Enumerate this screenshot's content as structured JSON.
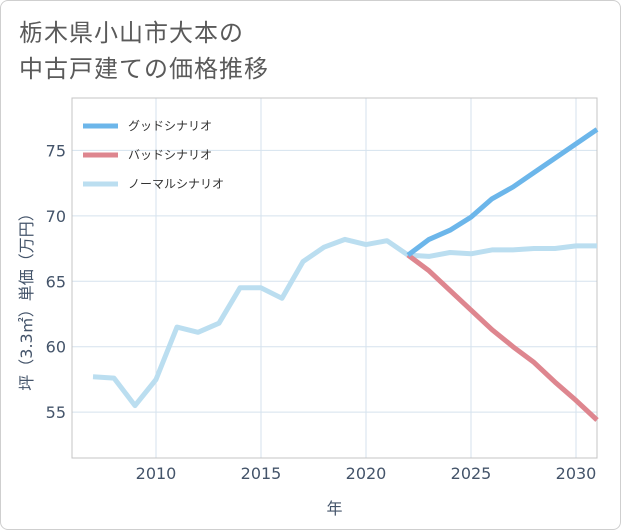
{
  "title_lines": [
    "栃木県小山市大本の",
    "中古戸建ての価格推移"
  ],
  "colors": {
    "good": "#6cb6ea",
    "bad": "#de868f",
    "normal": "#bbdef0",
    "grid": "#d5e2ee",
    "axis_text": "#44546a",
    "frame": "#c4c4c4"
  },
  "chart_data": {
    "type": "line",
    "title": "栃木県小山市大本の中古戸建ての価格推移",
    "xlabel": "年",
    "ylabel": "坪（3.3㎡）単価（万円）",
    "xlim": [
      2006,
      2031
    ],
    "ylim": [
      51.5,
      79
    ],
    "x_ticks": [
      2010,
      2015,
      2020,
      2025,
      2030
    ],
    "y_ticks": [
      55,
      60,
      65,
      70,
      75
    ],
    "grid": true,
    "legend_position": "top-left",
    "series": [
      {
        "key": "good",
        "name": "グッドシナリオ",
        "x": [
          2022,
          2023,
          2024,
          2025,
          2026,
          2027,
          2028,
          2029,
          2030,
          2031
        ],
        "values": [
          67.0,
          68.2,
          68.9,
          69.9,
          71.3,
          72.2,
          73.3,
          74.4,
          75.5,
          76.6
        ]
      },
      {
        "key": "bad",
        "name": "バッドシナリオ",
        "x": [
          2022,
          2023,
          2024,
          2025,
          2026,
          2027,
          2028,
          2029,
          2030,
          2031
        ],
        "values": [
          67.0,
          65.8,
          64.3,
          62.8,
          61.3,
          60.0,
          58.8,
          57.3,
          55.9,
          54.4
        ]
      },
      {
        "key": "normal",
        "name": "ノーマルシナリオ",
        "x": [
          2007,
          2008,
          2009,
          2010,
          2011,
          2012,
          2013,
          2014,
          2015,
          2016,
          2017,
          2018,
          2019,
          2020,
          2021,
          2022,
          2023,
          2024,
          2025,
          2026,
          2027,
          2028,
          2029,
          2030,
          2031
        ],
        "values": [
          57.7,
          57.6,
          55.5,
          57.5,
          61.5,
          61.1,
          61.8,
          64.5,
          64.5,
          63.7,
          66.5,
          67.6,
          68.2,
          67.8,
          68.1,
          67.0,
          66.9,
          67.2,
          67.1,
          67.4,
          67.4,
          67.5,
          67.5,
          67.7,
          67.7
        ]
      }
    ]
  }
}
